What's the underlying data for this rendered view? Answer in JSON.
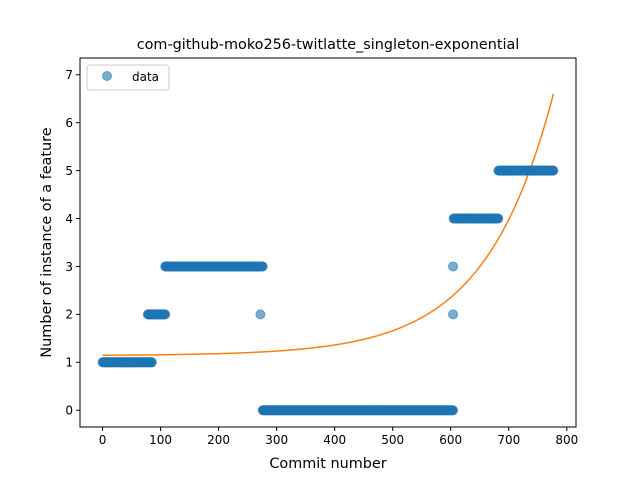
{
  "chart_data": {
    "type": "scatter",
    "title": "com-github-moko256-twitlatte_singleton-exponential",
    "xlabel": "Commit number",
    "ylabel": "Number of instance of a feature",
    "xlim": [
      -38.85,
      815.85
    ],
    "ylim": [
      -0.35,
      7.35
    ],
    "x_ticks": [
      0,
      100,
      200,
      300,
      400,
      500,
      600,
      700,
      800
    ],
    "y_ticks": [
      0,
      1,
      2,
      3,
      4,
      5,
      6,
      7
    ],
    "grid": false,
    "legend": {
      "location": "top-left",
      "entries": [
        "data"
      ]
    },
    "series": [
      {
        "name": "data",
        "kind": "scatter",
        "color": "#1f77b4",
        "alpha": 0.6,
        "segments": [
          {
            "x_start": 0,
            "x_end": 85,
            "y": 1
          },
          {
            "x_start": 78,
            "x_end": 108,
            "y": 2
          },
          {
            "x_start": 108,
            "x_end": 276,
            "y": 3
          },
          {
            "x_start": 276,
            "x_end": 604,
            "y": 0
          },
          {
            "x_start": 605,
            "x_end": 682,
            "y": 4
          },
          {
            "x_start": 682,
            "x_end": 777,
            "y": 5
          }
        ],
        "points": [
          {
            "x": 272,
            "y": 2
          },
          {
            "x": 604,
            "y": 2
          },
          {
            "x": 604,
            "y": 3
          }
        ]
      },
      {
        "kind": "line",
        "color": "#ff7f0e",
        "fit": {
          "a": 0.0074,
          "b": 0.0085,
          "c": 1.14
        },
        "x_range": [
          0,
          777
        ]
      }
    ]
  }
}
